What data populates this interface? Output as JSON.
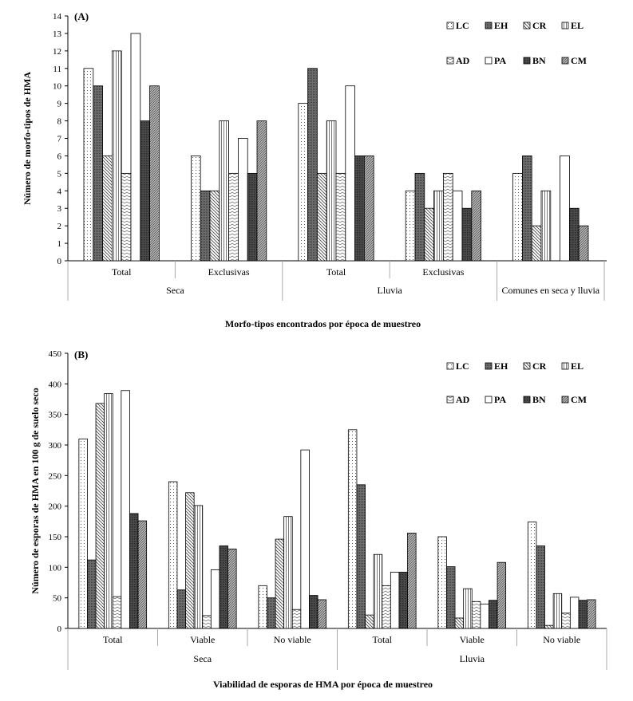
{
  "chart_data": [
    {
      "type": "bar",
      "panel": "(A)",
      "ylabel": "Número de morfo-tipos de HMA",
      "xlabel": "Morfo-tipos encontrados por época de muestreo",
      "ylim": [
        0,
        14
      ],
      "yticks": [
        "0",
        "1",
        "2",
        "3",
        "4",
        "5",
        "6",
        "7",
        "8",
        "9",
        "10",
        "11",
        "12",
        "13",
        "14"
      ],
      "legend": [
        "LC",
        "EH",
        "CR",
        "EL",
        "AD",
        "PA",
        "BN",
        "CM"
      ],
      "categories": [
        "Total",
        "Exclusivas",
        "Total",
        "Exclusivas",
        ""
      ],
      "groups": [
        {
          "label": "Seca",
          "span": 2
        },
        {
          "label": "Lluvia",
          "span": 2
        },
        {
          "label": "Comunes en seca y lluvia",
          "span": 1
        }
      ],
      "series": [
        {
          "name": "LC",
          "values": [
            11,
            6,
            9,
            4,
            5
          ]
        },
        {
          "name": "EH",
          "values": [
            10,
            4,
            11,
            5,
            6
          ]
        },
        {
          "name": "CR",
          "values": [
            6,
            4,
            5,
            3,
            2
          ]
        },
        {
          "name": "EL",
          "values": [
            12,
            8,
            8,
            4,
            4
          ]
        },
        {
          "name": "AD",
          "values": [
            5,
            5,
            5,
            5,
            null
          ]
        },
        {
          "name": "PA",
          "values": [
            13,
            7,
            10,
            4,
            6
          ]
        },
        {
          "name": "BN",
          "values": [
            8,
            5,
            6,
            3,
            3
          ]
        },
        {
          "name": "CM",
          "values": [
            10,
            8,
            6,
            4,
            2
          ]
        }
      ]
    },
    {
      "type": "bar",
      "panel": "(B)",
      "ylabel": "Número de esporas de HMA en 100 g de suelo seco",
      "xlabel": "Viabilidad de esporas de HMA por época de muestreo",
      "ylim": [
        0,
        450
      ],
      "yticks": [
        "0",
        "50",
        "100",
        "150",
        "200",
        "250",
        "300",
        "350",
        "400",
        "450"
      ],
      "legend": [
        "LC",
        "EH",
        "CR",
        "EL",
        "AD",
        "PA",
        "BN",
        "CM"
      ],
      "categories": [
        "Total",
        "Viable",
        "No viable",
        "Total",
        "Viable",
        "No viable"
      ],
      "groups": [
        {
          "label": "Seca",
          "span": 3
        },
        {
          "label": "Lluvia",
          "span": 3
        }
      ],
      "series": [
        {
          "name": "LC",
          "values": [
            310,
            240,
            70,
            325,
            150,
            174
          ]
        },
        {
          "name": "EH",
          "values": [
            112,
            63,
            50,
            235,
            101,
            135
          ]
        },
        {
          "name": "CR",
          "values": [
            368,
            222,
            146,
            22,
            17,
            5
          ]
        },
        {
          "name": "EL",
          "values": [
            384,
            201,
            183,
            121,
            65,
            57
          ]
        },
        {
          "name": "AD",
          "values": [
            52,
            21,
            31,
            70,
            44,
            25
          ]
        },
        {
          "name": "PA",
          "values": [
            389,
            96,
            292,
            92,
            40,
            51
          ]
        },
        {
          "name": "BN",
          "values": [
            188,
            135,
            54,
            92,
            46,
            46
          ]
        },
        {
          "name": "CM",
          "values": [
            176,
            130,
            47,
            156,
            108,
            47
          ]
        }
      ]
    }
  ]
}
